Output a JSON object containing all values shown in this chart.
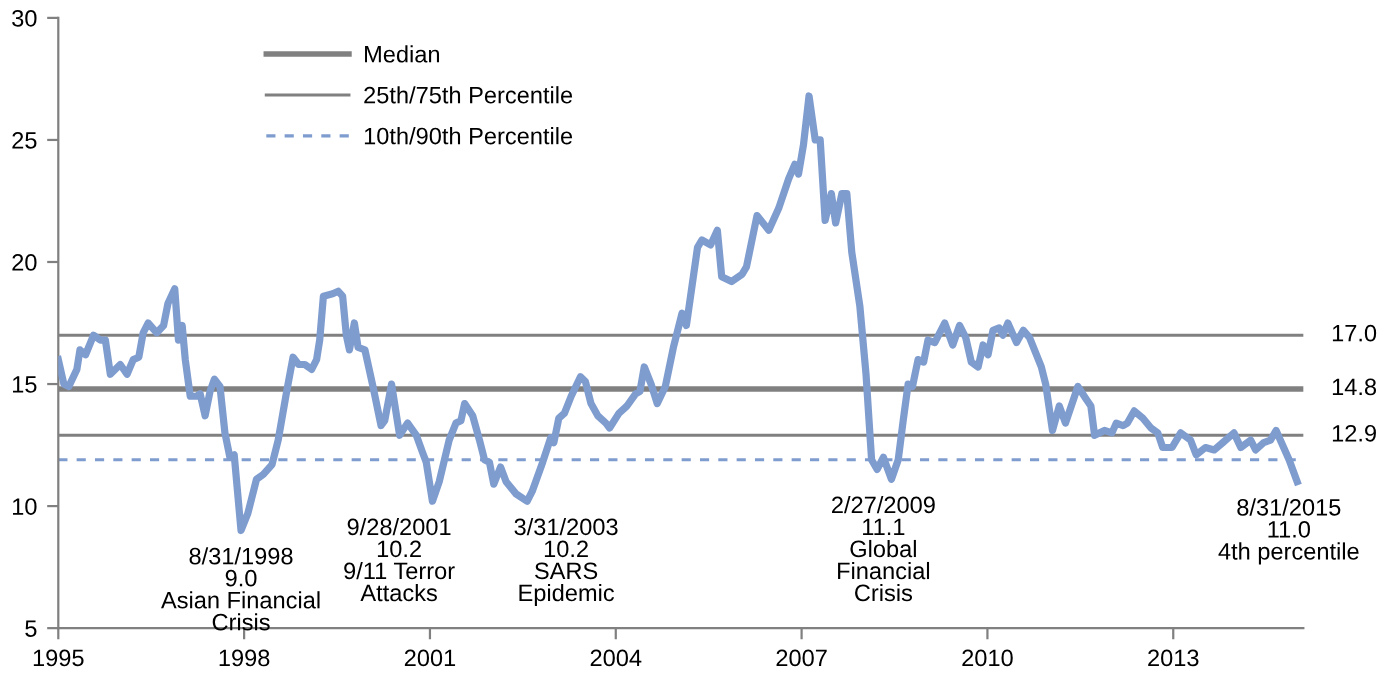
{
  "chart_data": {
    "type": "line",
    "xlim": [
      1995,
      2015.1
    ],
    "xticks": [
      1995,
      1998,
      2001,
      2004,
      2007,
      2010,
      2013
    ],
    "ylim": [
      5,
      30
    ],
    "yticks": [
      5,
      10,
      15,
      20,
      25,
      30
    ],
    "grid": false,
    "legend": "top left",
    "marker": "none",
    "series": [
      {
        "color": "#7f9ccf",
        "line_style": "solid",
        "x": [
          1995.0,
          1995.09,
          1995.17,
          1995.3,
          1995.35,
          1995.44,
          1995.57,
          1995.68,
          1995.76,
          1995.84,
          1996.0,
          1996.11,
          1996.21,
          1996.3,
          1996.37,
          1996.45,
          1996.59,
          1996.7,
          1996.77,
          1996.88,
          1996.94,
          1997.0,
          1997.05,
          1997.13,
          1997.23,
          1997.29,
          1997.37,
          1997.45,
          1997.52,
          1997.61,
          1997.69,
          1997.77,
          1997.84,
          1997.95,
          1998.06,
          1998.2,
          1998.31,
          1998.45,
          1998.55,
          1998.68,
          1998.79,
          1998.88,
          1998.98,
          1999.09,
          1999.17,
          1999.22,
          1999.28,
          1999.43,
          1999.52,
          1999.59,
          1999.65,
          1999.7,
          1999.78,
          1999.84,
          1999.95,
          2000.08,
          2000.21,
          2000.27,
          2000.38,
          2000.51,
          2000.64,
          2000.78,
          2000.88,
          2000.94,
          2001.04,
          2001.15,
          2001.31,
          2001.42,
          2001.5,
          2001.56,
          2001.69,
          2001.8,
          2001.88,
          2001.96,
          2002.03,
          2002.14,
          2002.23,
          2002.39,
          2002.57,
          2002.65,
          2002.82,
          2002.95,
          2003.0,
          2003.08,
          2003.17,
          2003.28,
          2003.43,
          2003.51,
          2003.6,
          2003.71,
          2003.84,
          2003.9,
          2004.05,
          2004.18,
          2004.32,
          2004.39,
          2004.46,
          2004.57,
          2004.67,
          2004.8,
          2004.93,
          2005.07,
          2005.14,
          2005.32,
          2005.39,
          2005.53,
          2005.64,
          2005.71,
          2005.87,
          2006.04,
          2006.11,
          2006.28,
          2006.47,
          2006.63,
          2006.79,
          2006.89,
          2006.95,
          2007.03,
          2007.12,
          2007.22,
          2007.3,
          2007.38,
          2007.48,
          2007.55,
          2007.65,
          2007.73,
          2007.81,
          2007.94,
          2008.04,
          2008.13,
          2008.22,
          2008.32,
          2008.45,
          2008.56,
          2008.64,
          2008.72,
          2008.79,
          2008.88,
          2008.97,
          2009.04,
          2009.15,
          2009.31,
          2009.44,
          2009.55,
          2009.65,
          2009.74,
          2009.85,
          2009.93,
          2010.01,
          2010.09,
          2010.19,
          2010.25,
          2010.33,
          2010.47,
          2010.58,
          2010.68,
          2010.87,
          2010.94,
          2011.05,
          2011.16,
          2011.26,
          2011.46,
          2011.59,
          2011.67,
          2011.73,
          2011.89,
          2012.01,
          2012.08,
          2012.19,
          2012.26,
          2012.37,
          2012.51,
          2012.64,
          2012.75,
          2012.83,
          2012.98,
          2013.12,
          2013.28,
          2013.37,
          2013.52,
          2013.66,
          2013.8,
          2013.98,
          2014.09,
          2014.25,
          2014.33,
          2014.46,
          2014.57,
          2014.66,
          2014.73,
          2014.87,
          2015.0
        ],
        "values": [
          16.0,
          15.0,
          14.9,
          15.6,
          16.4,
          16.2,
          17.0,
          16.8,
          16.8,
          15.4,
          15.8,
          15.4,
          16.0,
          16.1,
          17.1,
          17.5,
          17.1,
          17.4,
          18.3,
          18.9,
          16.8,
          17.4,
          16.0,
          14.5,
          14.5,
          14.6,
          13.7,
          14.7,
          15.2,
          14.9,
          13.0,
          12.0,
          12.1,
          9.0,
          9.7,
          11.1,
          11.3,
          11.7,
          12.7,
          14.6,
          16.1,
          15.8,
          15.8,
          15.6,
          16.0,
          16.8,
          18.6,
          18.7,
          18.8,
          18.6,
          17.0,
          16.4,
          17.5,
          16.5,
          16.4,
          14.9,
          13.3,
          13.5,
          15.0,
          12.9,
          13.4,
          12.9,
          12.2,
          11.8,
          10.2,
          11.0,
          12.7,
          13.4,
          13.5,
          14.2,
          13.7,
          12.7,
          11.9,
          11.8,
          10.9,
          11.6,
          11.0,
          10.5,
          10.2,
          10.6,
          11.8,
          12.8,
          12.6,
          13.6,
          13.8,
          14.5,
          15.3,
          15.1,
          14.2,
          13.7,
          13.4,
          13.2,
          13.8,
          14.1,
          14.6,
          14.7,
          15.7,
          15.0,
          14.2,
          14.9,
          16.5,
          17.9,
          17.4,
          20.6,
          20.9,
          20.7,
          21.3,
          19.4,
          19.2,
          19.5,
          19.8,
          21.9,
          21.3,
          22.2,
          23.4,
          24.0,
          23.6,
          24.8,
          26.8,
          25.0,
          25.0,
          21.7,
          22.8,
          21.6,
          22.8,
          22.8,
          20.4,
          18.2,
          15.4,
          11.9,
          11.5,
          12.0,
          11.1,
          11.9,
          13.5,
          15.0,
          14.9,
          16.0,
          15.9,
          16.8,
          16.7,
          17.5,
          16.6,
          17.4,
          16.9,
          15.9,
          15.7,
          16.6,
          16.2,
          17.2,
          17.3,
          17.0,
          17.5,
          16.7,
          17.2,
          16.9,
          15.7,
          15.0,
          13.1,
          14.1,
          13.4,
          14.9,
          14.4,
          14.1,
          12.9,
          13.1,
          13.0,
          13.4,
          13.3,
          13.4,
          13.9,
          13.6,
          13.2,
          13.0,
          12.4,
          12.4,
          13.0,
          12.7,
          12.1,
          12.4,
          12.3,
          12.6,
          13.0,
          12.4,
          12.7,
          12.3,
          12.6,
          12.7,
          13.1,
          12.7,
          11.9,
          11.0
        ]
      },
      {
        "name": "Median",
        "color": "#808080",
        "line_style": "solid",
        "x": [
          1995,
          2015.1
        ],
        "values": [
          14.8,
          14.8
        ]
      },
      {
        "name": "25th/75th Percentile",
        "color": "#808080",
        "line_style": "solid",
        "x": [
          1995,
          2015.1
        ],
        "values": [
          17.0,
          17.0
        ]
      },
      {
        "color": "#808080",
        "line_style": "solid",
        "x": [
          1995,
          2015.1
        ],
        "values": [
          12.9,
          12.9
        ]
      },
      {
        "name": "10th/90th Percentile",
        "color": "#7f9ccf",
        "line_style": "dashed",
        "x": [
          1995,
          2015.1
        ],
        "values": [
          11.9,
          11.9
        ]
      }
    ],
    "annotations": [
      {
        "text": "17.0",
        "x": 2015.1,
        "y": 17.0
      },
      {
        "text": "14.8",
        "x": 2015.1,
        "y": 14.8
      },
      {
        "text": "12.9",
        "x": 2015.1,
        "y": 12.9
      },
      {
        "text": "8/31/1998\n9.0\nAsian Financial\nCrisis",
        "x": 1997.95,
        "y": 9.0
      },
      {
        "text": "9/28/2001\n10.2\n9/11 Terror\nAttacks",
        "x": 2001.04,
        "y": 10.2
      },
      {
        "text": "3/31/2003\n10.2\nSARS\nEpidemic",
        "x": 2002.57,
        "y": 10.2
      },
      {
        "text": "2/27/2009\n11.1\nGlobal\nFinancial\nCrisis",
        "x": 2008.32,
        "y": 11.1
      },
      {
        "text": "8/31/2015\n11.0\n4th percentile",
        "x": 2015.0,
        "y": 11.0
      }
    ]
  }
}
